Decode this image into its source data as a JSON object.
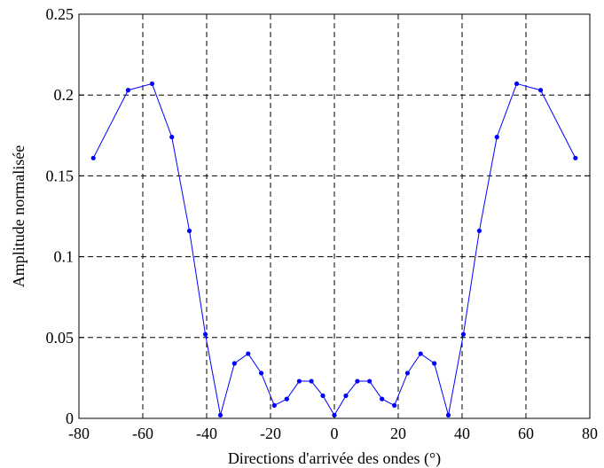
{
  "chart_data": {
    "type": "line",
    "title": "",
    "xlabel": "Directions d'arrivée des ondes (°)",
    "ylabel": "Amplitude normalisée",
    "xlim": [
      -80,
      80
    ],
    "ylim": [
      0,
      0.25
    ],
    "x_ticks": [
      -80,
      -60,
      -40,
      -20,
      0,
      20,
      40,
      60,
      80
    ],
    "y_ticks": [
      0,
      0.05,
      0.1,
      0.15,
      0.2,
      0.25
    ],
    "x_tick_labels": [
      "-80",
      "-60",
      "-40",
      "-20",
      "0",
      "20",
      "40",
      "60",
      "80"
    ],
    "y_tick_labels": [
      "0",
      "0.05",
      "0.1",
      "0.15",
      "0.2",
      "0.25"
    ],
    "grid": true,
    "grid_style": "dashed",
    "series": [
      {
        "color": "#0000ff",
        "marker": "dot",
        "x": [
          -75.5,
          -64.6,
          -57.1,
          -50.9,
          -45.4,
          -40.4,
          -35.7,
          -31.3,
          -27.0,
          -22.9,
          -18.8,
          -14.9,
          -11.0,
          -7.2,
          -3.6,
          0,
          3.6,
          7.2,
          11.0,
          14.9,
          18.8,
          22.9,
          27.0,
          31.3,
          35.7,
          40.4,
          45.4,
          50.9,
          57.1,
          64.6,
          75.5
        ],
        "y": [
          0.161,
          0.203,
          0.207,
          0.174,
          0.116,
          0.052,
          0.002,
          0.034,
          0.04,
          0.028,
          0.008,
          0.012,
          0.023,
          0.023,
          0.014,
          0.002,
          0.014,
          0.023,
          0.023,
          0.012,
          0.008,
          0.028,
          0.04,
          0.034,
          0.002,
          0.052,
          0.116,
          0.174,
          0.207,
          0.203,
          0.161
        ]
      }
    ]
  }
}
